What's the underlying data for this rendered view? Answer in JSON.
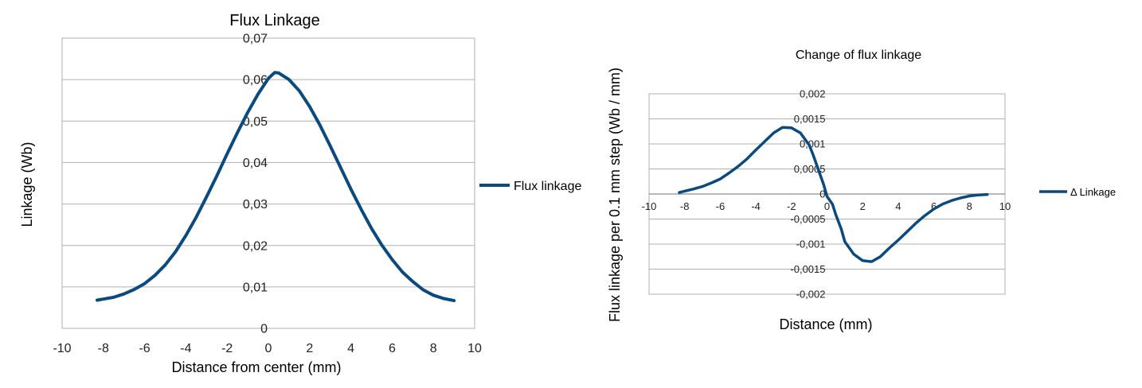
{
  "chart_data": [
    {
      "type": "line",
      "title": "Flux Linkage",
      "xlabel": "Distance from center (mm)",
      "ylabel": "Linkage (Wb)",
      "xlim": [
        -10,
        10
      ],
      "ylim": [
        0,
        0.07
      ],
      "x_ticks": [
        "-10",
        "-8",
        "-6",
        "-4",
        "-2",
        "0",
        "2",
        "4",
        "6",
        "8",
        "10"
      ],
      "y_ticks": [
        "0",
        "0,01",
        "0,02",
        "0,03",
        "0,04",
        "0,05",
        "0,06",
        "0,07"
      ],
      "grid": "horizontal",
      "legend": "right",
      "color": "#0b4a7f",
      "series": [
        {
          "name": "Flux linkage",
          "x": [
            -8.3,
            -7.5,
            -7,
            -6.5,
            -6,
            -5.5,
            -5,
            -4.5,
            -4,
            -3.5,
            -3,
            -2.5,
            -2,
            -1.5,
            -1,
            -0.5,
            0,
            0.3,
            0.5,
            1,
            1.5,
            2,
            2.5,
            3,
            3.5,
            4,
            4.5,
            5,
            5.5,
            6,
            6.5,
            7,
            7.5,
            8,
            8.5,
            9
          ],
          "y": [
            0.0068,
            0.0075,
            0.0083,
            0.0094,
            0.0108,
            0.0128,
            0.0153,
            0.0185,
            0.0224,
            0.0268,
            0.0317,
            0.0368,
            0.0421,
            0.0472,
            0.0521,
            0.0565,
            0.0603,
            0.0617,
            0.0616,
            0.06,
            0.0573,
            0.0535,
            0.049,
            0.044,
            0.0388,
            0.0336,
            0.0287,
            0.0241,
            0.0201,
            0.0166,
            0.0136,
            0.0113,
            0.0093,
            0.008,
            0.0072,
            0.0067
          ]
        }
      ]
    },
    {
      "type": "line",
      "title": "Change of flux linkage",
      "xlabel": "Distance (mm)",
      "ylabel": "Flux linkage per 0.1 mm step (Wb / mm)",
      "xlim": [
        -10,
        10
      ],
      "ylim": [
        -0.002,
        0.002
      ],
      "x_ticks": [
        "-10",
        "-8",
        "-6",
        "-4",
        "-2",
        "0",
        "2",
        "4",
        "6",
        "8",
        "10"
      ],
      "y_ticks": [
        "-0,002",
        "-0,0015",
        "-0,001",
        "-0,0005",
        "0",
        "0,0005",
        "0,001",
        "0,0015",
        "0,002"
      ],
      "grid": "horizontal",
      "legend": "right",
      "color": "#0b4a7f",
      "series": [
        {
          "name": "Δ Linkage",
          "x": [
            -8.3,
            -7.5,
            -7,
            -6.5,
            -6,
            -5.5,
            -5,
            -4.5,
            -4,
            -3.5,
            -3,
            -2.5,
            -2,
            -1.5,
            -1,
            -0.8,
            -0.5,
            -0.2,
            0,
            0.3,
            0.5,
            0.8,
            1,
            1.5,
            2,
            2.5,
            3,
            3.5,
            4,
            4.5,
            5,
            5.5,
            6,
            6.5,
            7,
            7.5,
            8,
            8.5,
            9
          ],
          "y": [
            3e-05,
            0.0001,
            0.00015,
            0.00022,
            0.0003,
            0.00042,
            0.00055,
            0.0007,
            0.00088,
            0.00105,
            0.00122,
            0.00133,
            0.00132,
            0.00122,
            0.00098,
            0.0008,
            0.0005,
            0.0002,
            -5e-05,
            -0.0002,
            -0.00042,
            -0.0007,
            -0.00095,
            -0.0012,
            -0.00133,
            -0.00135,
            -0.00125,
            -0.00108,
            -0.00092,
            -0.00075,
            -0.00058,
            -0.00043,
            -0.0003,
            -0.0002,
            -0.00013,
            -8e-05,
            -4e-05,
            -2e-05,
            -1e-05
          ]
        }
      ]
    }
  ]
}
